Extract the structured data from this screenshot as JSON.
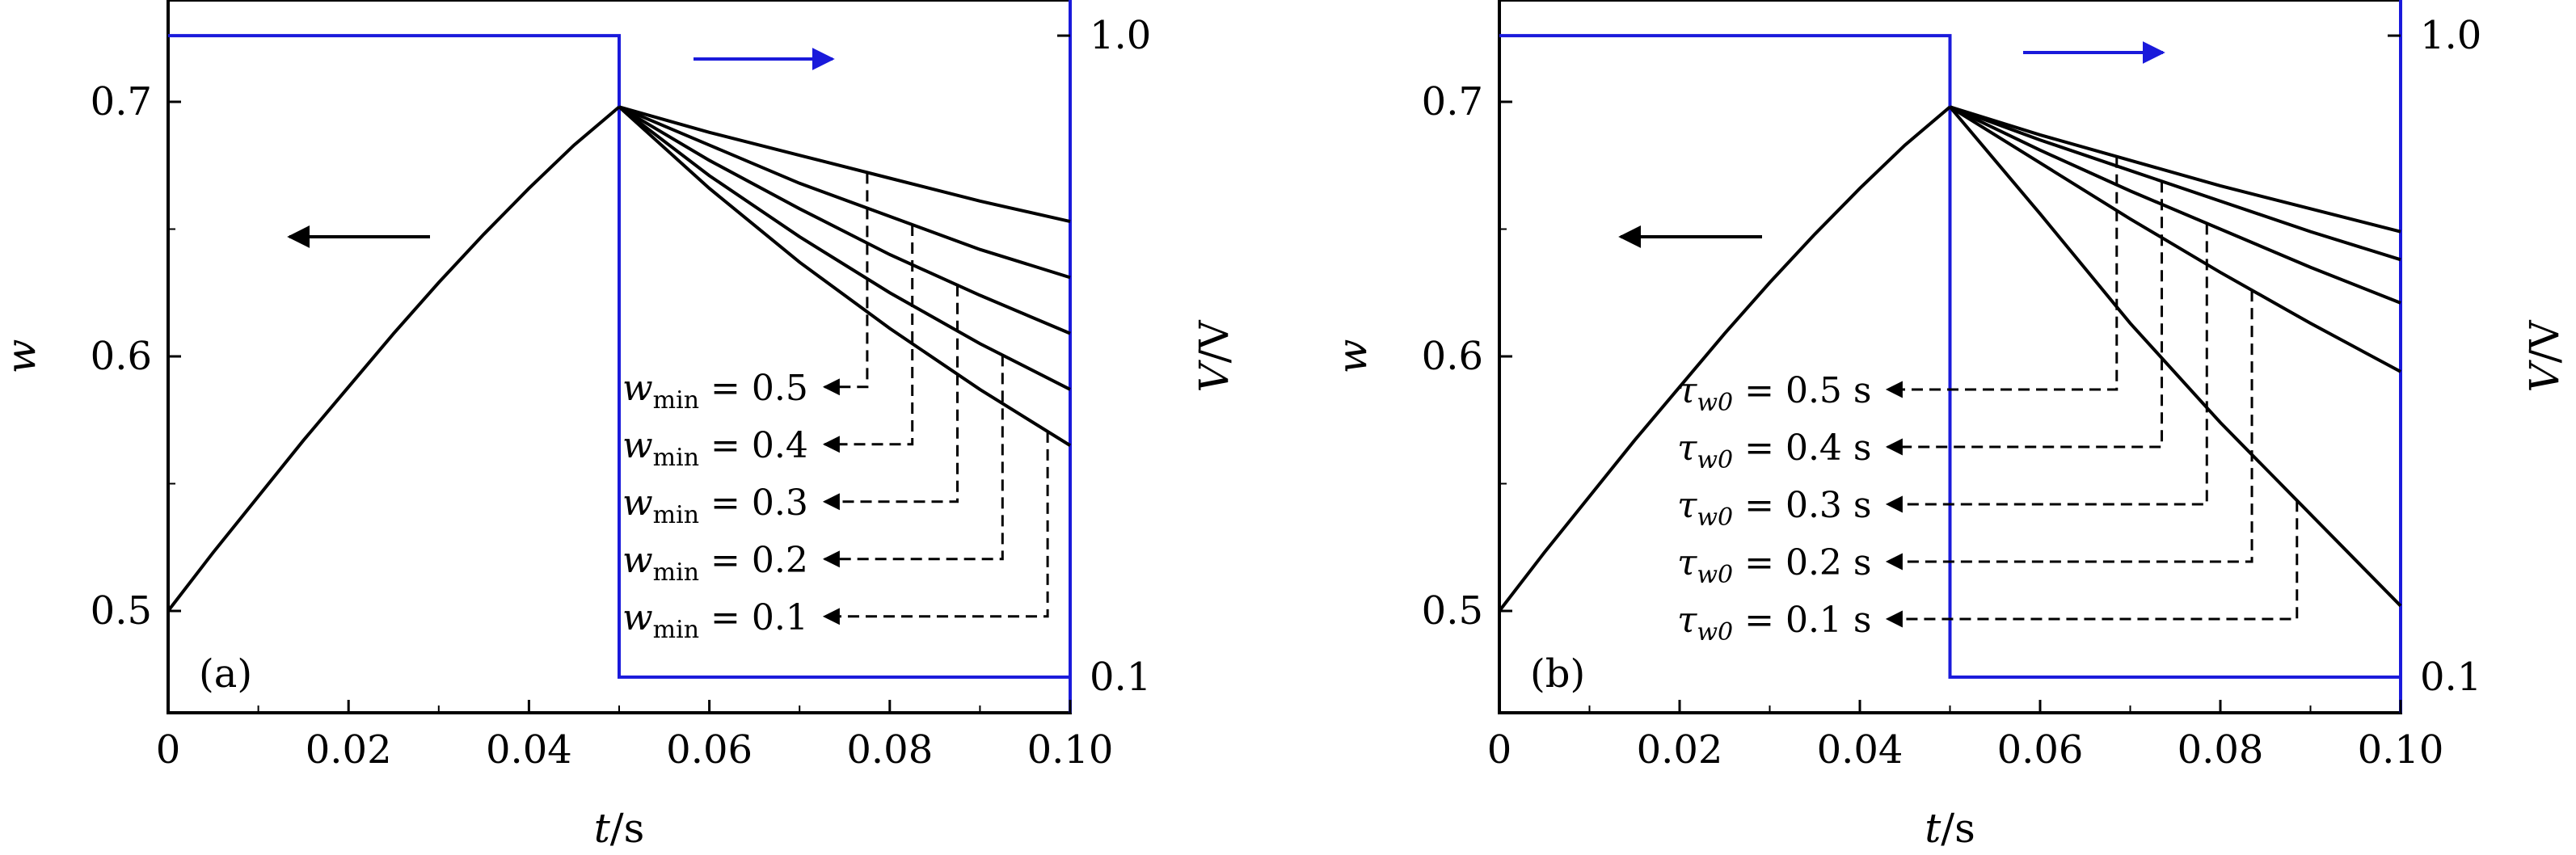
{
  "colors": {
    "weight": "#000000",
    "voltage": "#1a1adb",
    "background": "#ffffff"
  },
  "chart_data": [
    {
      "type": "line",
      "panel": "(a)",
      "xlabel": "t/s",
      "ylabel": "w",
      "y2label": "V/V",
      "xlim": [
        0,
        0.1
      ],
      "ylim": [
        0.46,
        0.74
      ],
      "y2lim": [
        0.05,
        1.05
      ],
      "xticks": [
        "0",
        "0.02",
        "0.04",
        "0.06",
        "0.08",
        "0.10"
      ],
      "yticks": [
        "0.5",
        "0.6",
        "0.7"
      ],
      "y2ticks": [
        "0.1",
        "1.0"
      ],
      "voltage": {
        "high": 1.0,
        "low": 0.1,
        "t_switch": 0.05
      },
      "rise": {
        "x": [
          0,
          0.005,
          0.01,
          0.015,
          0.02,
          0.025,
          0.03,
          0.035,
          0.04,
          0.045,
          0.05
        ],
        "y": [
          0.5,
          0.523,
          0.545,
          0.567,
          0.588,
          0.609,
          0.629,
          0.648,
          0.666,
          0.683,
          0.698
        ]
      },
      "series": [
        {
          "name": "w_min = 0.5",
          "sub": "min",
          "label": "= 0.5",
          "x": [
            0.05,
            0.06,
            0.07,
            0.08,
            0.09,
            0.1
          ],
          "y": [
            0.698,
            0.688,
            0.679,
            0.67,
            0.661,
            0.653
          ],
          "tmark": 0.0775
        },
        {
          "name": "w_min = 0.4",
          "sub": "min",
          "label": "= 0.4",
          "x": [
            0.05,
            0.06,
            0.07,
            0.08,
            0.09,
            0.1
          ],
          "y": [
            0.698,
            0.683,
            0.668,
            0.655,
            0.642,
            0.631
          ],
          "tmark": 0.0825
        },
        {
          "name": "w_min = 0.3",
          "sub": "min",
          "label": "= 0.3",
          "x": [
            0.05,
            0.06,
            0.07,
            0.08,
            0.09,
            0.1
          ],
          "y": [
            0.698,
            0.677,
            0.658,
            0.64,
            0.624,
            0.609
          ],
          "tmark": 0.0875
        },
        {
          "name": "w_min = 0.2",
          "sub": "min",
          "label": "= 0.2",
          "x": [
            0.05,
            0.06,
            0.07,
            0.08,
            0.09,
            0.1
          ],
          "y": [
            0.698,
            0.671,
            0.647,
            0.625,
            0.605,
            0.587
          ],
          "tmark": 0.0925
        },
        {
          "name": "w_min = 0.1",
          "sub": "min",
          "label": "= 0.1",
          "x": [
            0.05,
            0.06,
            0.07,
            0.08,
            0.09,
            0.1
          ],
          "y": [
            0.698,
            0.666,
            0.637,
            0.611,
            0.587,
            0.565
          ],
          "tmark": 0.0975
        }
      ]
    },
    {
      "type": "line",
      "panel": "(b)",
      "xlabel": "t/s",
      "ylabel": "w",
      "y2label": "V/V",
      "xlim": [
        0,
        0.1
      ],
      "ylim": [
        0.46,
        0.74
      ],
      "y2lim": [
        0.05,
        1.05
      ],
      "xticks": [
        "0",
        "0.02",
        "0.04",
        "0.06",
        "0.08",
        "0.10"
      ],
      "yticks": [
        "0.5",
        "0.6",
        "0.7"
      ],
      "y2ticks": [
        "0.1",
        "1.0"
      ],
      "voltage": {
        "high": 1.0,
        "low": 0.1,
        "t_switch": 0.05
      },
      "rise": {
        "x": [
          0,
          0.005,
          0.01,
          0.015,
          0.02,
          0.025,
          0.03,
          0.035,
          0.04,
          0.045,
          0.05
        ],
        "y": [
          0.5,
          0.523,
          0.545,
          0.567,
          0.588,
          0.609,
          0.629,
          0.648,
          0.666,
          0.683,
          0.698
        ]
      },
      "series": [
        {
          "name": "τ_w0 = 0.5 s",
          "sub": "w0",
          "label": "= 0.5 s",
          "x": [
            0.05,
            0.06,
            0.07,
            0.08,
            0.09,
            0.1
          ],
          "y": [
            0.698,
            0.687,
            0.677,
            0.667,
            0.658,
            0.649
          ],
          "tmark": 0.0685
        },
        {
          "name": "τ_w0 = 0.4 s",
          "sub": "w0",
          "label": "= 0.4 s",
          "x": [
            0.05,
            0.06,
            0.07,
            0.08,
            0.09,
            0.1
          ],
          "y": [
            0.698,
            0.685,
            0.673,
            0.661,
            0.649,
            0.638
          ],
          "tmark": 0.0735
        },
        {
          "name": "τ_w0 = 0.3 s",
          "sub": "w0",
          "label": "= 0.3 s",
          "x": [
            0.05,
            0.06,
            0.07,
            0.08,
            0.09,
            0.1
          ],
          "y": [
            0.698,
            0.681,
            0.665,
            0.65,
            0.635,
            0.621
          ],
          "tmark": 0.0785
        },
        {
          "name": "τ_w0 = 0.2 s",
          "sub": "w0",
          "label": "= 0.2 s",
          "x": [
            0.05,
            0.06,
            0.07,
            0.08,
            0.09,
            0.1
          ],
          "y": [
            0.698,
            0.676,
            0.654,
            0.633,
            0.613,
            0.594
          ],
          "tmark": 0.0835
        },
        {
          "name": "τ_w0 = 0.1 s",
          "sub": "w0",
          "label": "= 0.1 s",
          "x": [
            0.05,
            0.06,
            0.07,
            0.08,
            0.09,
            0.1
          ],
          "y": [
            0.698,
            0.656,
            0.613,
            0.574,
            0.538,
            0.502
          ],
          "tmark": 0.0885
        }
      ]
    }
  ]
}
